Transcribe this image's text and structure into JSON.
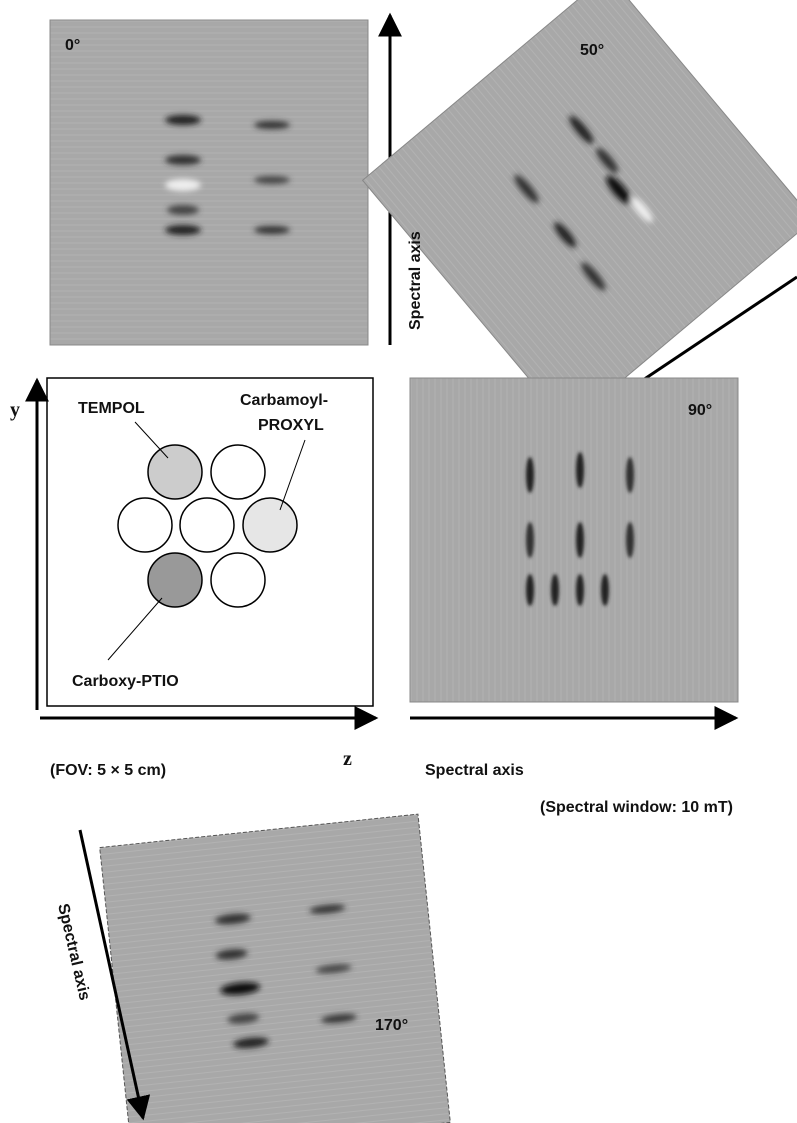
{
  "panels": [
    {
      "label": "0°"
    },
    {
      "label": "50°"
    },
    {
      "label": "90°"
    },
    {
      "label": "170°"
    }
  ],
  "phantom": {
    "y_axis": "y",
    "z_axis": "z",
    "tempol": "TEMPOL",
    "carbamoyl": [
      "Carbamoyl-",
      "PROXYL"
    ],
    "carboxy": "Carboxy-PTIO",
    "fov": "(FOV: 5 × 5 cm)"
  },
  "spectral_axis_labels": [
    "Spectral axis",
    "Spectral axis",
    "Spectral axis"
  ],
  "spectral_window": "(Spectral window: 10 mT)"
}
